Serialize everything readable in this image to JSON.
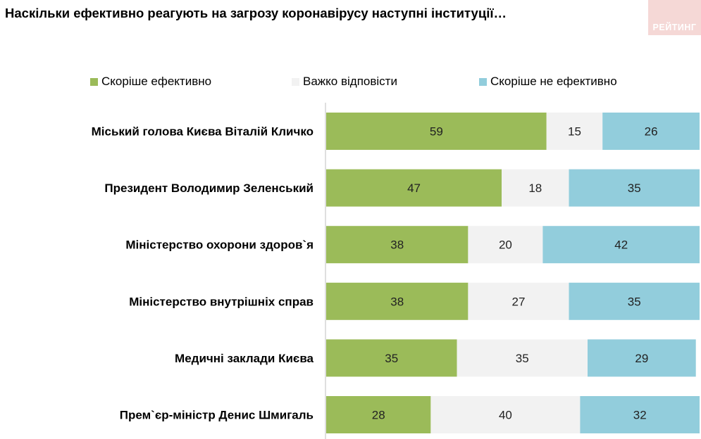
{
  "title": "Наскільки ефективно реагують на загрозу коронавірусу наступні інституції…",
  "logo": {
    "text": "РЕЙТИНГ"
  },
  "legend": [
    {
      "label": "Скоріше ефективно",
      "color": "#9bbb59"
    },
    {
      "label": "Важко відповісти",
      "color": "#f2f2f2"
    },
    {
      "label": "Скоріше не ефективно",
      "color": "#92cddc"
    }
  ],
  "chart_data": {
    "type": "bar",
    "orientation": "horizontal",
    "stacked": true,
    "xlim": [
      0,
      100
    ],
    "categories": [
      "Міський голова Києва Віталій Кличко",
      "Президент Володимир Зеленський",
      "Міністерство охорони здоров`я",
      "Міністерство внутрішніх справ",
      "Медичні заклади Києва",
      "Прем`єр-міністр Денис Шмигаль"
    ],
    "series": [
      {
        "name": "Скоріше ефективно",
        "color": "#9bbb59",
        "values": [
          59,
          47,
          38,
          38,
          35,
          28
        ]
      },
      {
        "name": "Важко відповісти",
        "color": "#f2f2f2",
        "values": [
          15,
          18,
          20,
          27,
          35,
          40
        ]
      },
      {
        "name": "Скоріше не ефективно",
        "color": "#92cddc",
        "values": [
          26,
          35,
          42,
          35,
          29,
          32
        ]
      }
    ],
    "data_labels": true,
    "grid": false,
    "legend_position": "top"
  }
}
